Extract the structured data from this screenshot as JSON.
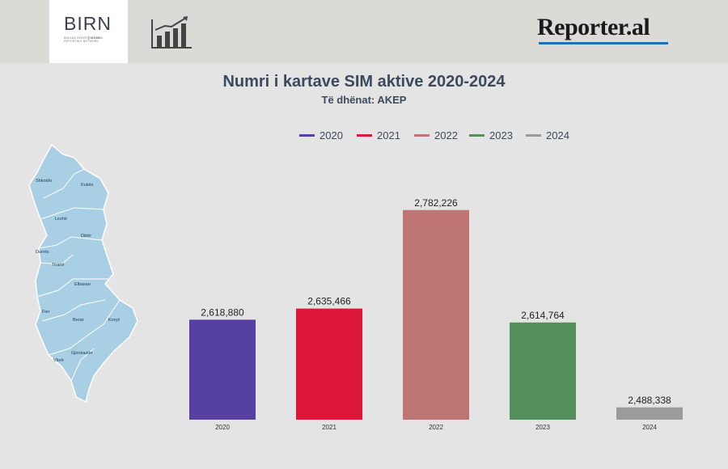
{
  "header": {
    "birn_logo_text": "BIRN",
    "birn_subtext": "BALKAN INVESTIGATIVE REPORTING NETWORK",
    "birn_country": "ALBANIA",
    "chart_icon": "bar-chart-trend-icon",
    "reporter_logo_text": "Reporter.al",
    "colors": {
      "band": "#dcdad6",
      "reporter_accent": "#1f6fb5"
    }
  },
  "map": {
    "icon": "albania-map-icon",
    "fill": "#a9cfe4",
    "labels": [
      "Shkodër",
      "Kukës",
      "Lezhë",
      "Dibër",
      "Durrës",
      "Tiranë",
      "Elbasan",
      "Fier",
      "Berat",
      "Korçë",
      "Gjirokastër",
      "Vlorë"
    ]
  },
  "chart_data": {
    "type": "bar",
    "title": "Numri i kartave SIM aktive 2020-2024",
    "subtitle": "Të dhënat: AKEP",
    "categories": [
      "2020",
      "2021",
      "2022",
      "2023",
      "2024"
    ],
    "values": [
      2618880,
      2635466,
      2782226,
      2614764,
      2488338
    ],
    "value_labels": [
      "2,618,880",
      "2,635,466",
      "2,782,226",
      "2,614,764",
      "2,488,338"
    ],
    "legend": [
      "2020",
      "2021",
      "2022",
      "2023",
      "2024"
    ],
    "legend_position": "top",
    "colors": [
      "#5641a3",
      "#dd1739",
      "#c07575",
      "#548f5c",
      "#9b9b9b"
    ],
    "ylim": [
      2470000,
      2800000
    ],
    "grid": false,
    "xlabel": "",
    "ylabel": ""
  }
}
